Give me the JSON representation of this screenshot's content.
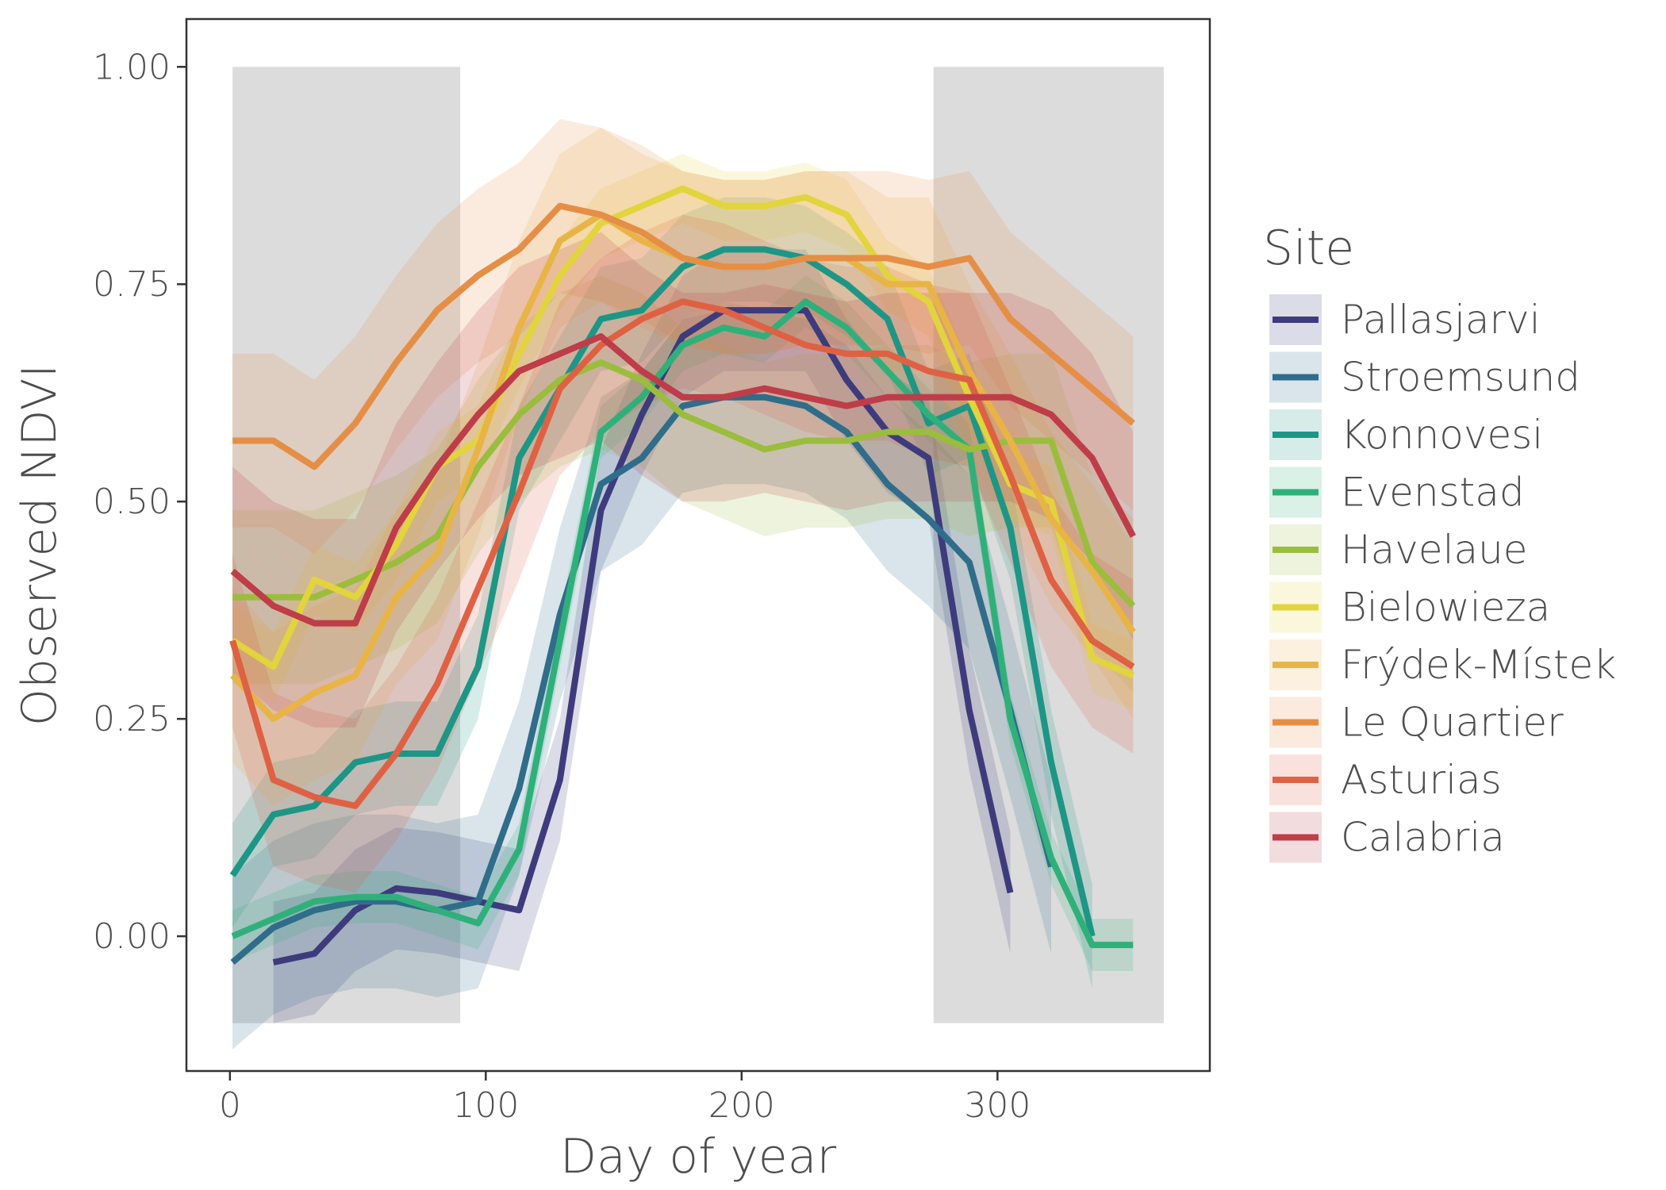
{
  "chart_data": {
    "type": "line",
    "xlabel": "Day of year",
    "ylabel": "Observed NDVI",
    "xlim": [
      -17,
      383
    ],
    "ylim": [
      -0.155,
      1.055
    ],
    "x_ticks": [
      0,
      100,
      200,
      300
    ],
    "x_tick_labels": [
      "0",
      "100",
      "200",
      "300"
    ],
    "y_ticks": [
      0,
      0.25,
      0.5,
      0.75,
      1.0
    ],
    "y_tick_labels": [
      "0.00",
      "0.25",
      "0.50",
      "0.75",
      "1.00"
    ],
    "grid": false,
    "legend_title": "Site",
    "legend_position": "right",
    "shaded_periods": [
      {
        "x0": 1,
        "x1": 90,
        "y0": -0.1,
        "y1": 1.0,
        "color": "#dcdcdc"
      },
      {
        "x0": 275,
        "x1": 365,
        "y0": -0.1,
        "y1": 1.0,
        "color": "#dcdcdc"
      }
    ],
    "series": [
      {
        "name": "Pallasjarvi",
        "color": "#3e3b7d",
        "x": [
          17,
          33,
          49,
          65,
          81,
          97,
          113,
          129,
          145,
          161,
          177,
          193,
          209,
          225,
          241,
          257,
          273,
          289,
          305
        ],
        "y": [
          -0.03,
          -0.02,
          0.03,
          0.055,
          0.05,
          0.04,
          0.03,
          0.18,
          0.49,
          0.6,
          0.69,
          0.72,
          0.72,
          0.72,
          0.64,
          0.58,
          0.55,
          0.26,
          0.05
        ],
        "band": 0.07
      },
      {
        "name": "Stroemsund",
        "color": "#2f6d8a",
        "x": [
          1,
          17,
          33,
          49,
          65,
          81,
          97,
          113,
          129,
          145,
          161,
          177,
          193,
          209,
          225,
          241,
          257,
          273,
          289,
          305,
          321
        ],
        "y": [
          -0.03,
          0.01,
          0.03,
          0.04,
          0.04,
          0.03,
          0.04,
          0.17,
          0.37,
          0.52,
          0.55,
          0.61,
          0.62,
          0.62,
          0.61,
          0.58,
          0.52,
          0.48,
          0.43,
          0.26,
          0.08
        ],
        "band": 0.1
      },
      {
        "name": "Konnovesi",
        "color": "#1d9686",
        "x": [
          1,
          17,
          33,
          49,
          65,
          81,
          97,
          113,
          129,
          145,
          161,
          177,
          193,
          209,
          225,
          241,
          257,
          273,
          289,
          305,
          321,
          337
        ],
        "y": [
          0.07,
          0.14,
          0.15,
          0.2,
          0.21,
          0.21,
          0.31,
          0.55,
          0.63,
          0.71,
          0.72,
          0.77,
          0.79,
          0.79,
          0.78,
          0.75,
          0.71,
          0.59,
          0.61,
          0.47,
          0.2,
          0.0
        ],
        "band": 0.06
      },
      {
        "name": "Evenstad",
        "color": "#2fb07a",
        "x": [
          1,
          17,
          33,
          49,
          65,
          81,
          97,
          113,
          129,
          145,
          161,
          177,
          193,
          209,
          225,
          241,
          257,
          273,
          289,
          305,
          321,
          337,
          353
        ],
        "y": [
          0.0,
          0.02,
          0.04,
          0.045,
          0.045,
          0.03,
          0.015,
          0.1,
          0.34,
          0.58,
          0.62,
          0.68,
          0.7,
          0.69,
          0.73,
          0.7,
          0.65,
          0.6,
          0.56,
          0.25,
          0.09,
          -0.01,
          -0.01
        ],
        "band": 0.03
      },
      {
        "name": "Havelaue",
        "color": "#9bbd3d",
        "x": [
          1,
          17,
          33,
          49,
          65,
          81,
          97,
          113,
          129,
          145,
          161,
          177,
          193,
          209,
          225,
          241,
          257,
          273,
          289,
          305,
          321,
          337,
          353
        ],
        "y": [
          0.39,
          0.39,
          0.39,
          0.41,
          0.43,
          0.46,
          0.54,
          0.6,
          0.64,
          0.66,
          0.64,
          0.6,
          0.58,
          0.56,
          0.57,
          0.57,
          0.58,
          0.58,
          0.56,
          0.57,
          0.57,
          0.43,
          0.38
        ],
        "band": 0.1
      },
      {
        "name": "Bielowieza",
        "color": "#e2d43c",
        "x": [
          1,
          17,
          33,
          49,
          65,
          81,
          97,
          113,
          129,
          145,
          161,
          177,
          193,
          209,
          225,
          241,
          257,
          273,
          289,
          305,
          321,
          337,
          353
        ],
        "y": [
          0.34,
          0.31,
          0.41,
          0.39,
          0.45,
          0.54,
          0.57,
          0.67,
          0.76,
          0.82,
          0.84,
          0.86,
          0.84,
          0.84,
          0.85,
          0.83,
          0.76,
          0.73,
          0.62,
          0.52,
          0.5,
          0.32,
          0.3
        ],
        "band": 0.04
      },
      {
        "name": "Frýdek-Místek",
        "color": "#e8b446",
        "x": [
          1,
          17,
          33,
          49,
          65,
          81,
          97,
          113,
          129,
          145,
          161,
          177,
          193,
          209,
          225,
          241,
          257,
          273,
          289,
          305,
          321,
          337,
          353
        ],
        "y": [
          0.3,
          0.25,
          0.28,
          0.3,
          0.39,
          0.44,
          0.56,
          0.7,
          0.8,
          0.83,
          0.8,
          0.78,
          0.77,
          0.77,
          0.78,
          0.78,
          0.75,
          0.75,
          0.65,
          0.57,
          0.48,
          0.42,
          0.35
        ],
        "band": 0.1
      },
      {
        "name": "Le Quartier",
        "color": "#e58e46",
        "x": [
          1,
          17,
          33,
          49,
          65,
          81,
          97,
          113,
          129,
          145,
          161,
          177,
          193,
          209,
          225,
          241,
          257,
          273,
          289,
          305,
          321,
          337,
          353
        ],
        "y": [
          0.57,
          0.57,
          0.54,
          0.59,
          0.66,
          0.72,
          0.76,
          0.79,
          0.84,
          0.83,
          0.81,
          0.78,
          0.77,
          0.77,
          0.78,
          0.78,
          0.78,
          0.77,
          0.78,
          0.71,
          0.67,
          0.63,
          0.59
        ],
        "band": 0.1
      },
      {
        "name": "Asturias",
        "color": "#de6144",
        "x": [
          1,
          17,
          33,
          49,
          65,
          81,
          97,
          113,
          129,
          145,
          161,
          177,
          193,
          209,
          225,
          241,
          257,
          273,
          289,
          305,
          321,
          337,
          353
        ],
        "y": [
          0.34,
          0.18,
          0.16,
          0.15,
          0.21,
          0.29,
          0.4,
          0.51,
          0.63,
          0.68,
          0.71,
          0.73,
          0.72,
          0.7,
          0.68,
          0.67,
          0.67,
          0.65,
          0.64,
          0.53,
          0.41,
          0.34,
          0.31
        ],
        "band": 0.1
      },
      {
        "name": "Calabria",
        "color": "#be3d48",
        "x": [
          1,
          17,
          33,
          49,
          65,
          81,
          97,
          113,
          129,
          145,
          161,
          177,
          193,
          209,
          225,
          241,
          257,
          273,
          289,
          305,
          321,
          337,
          353
        ],
        "y": [
          0.42,
          0.38,
          0.36,
          0.36,
          0.47,
          0.54,
          0.6,
          0.65,
          0.67,
          0.69,
          0.65,
          0.62,
          0.62,
          0.63,
          0.62,
          0.61,
          0.62,
          0.62,
          0.62,
          0.62,
          0.6,
          0.55,
          0.46
        ],
        "band": 0.12
      }
    ]
  }
}
